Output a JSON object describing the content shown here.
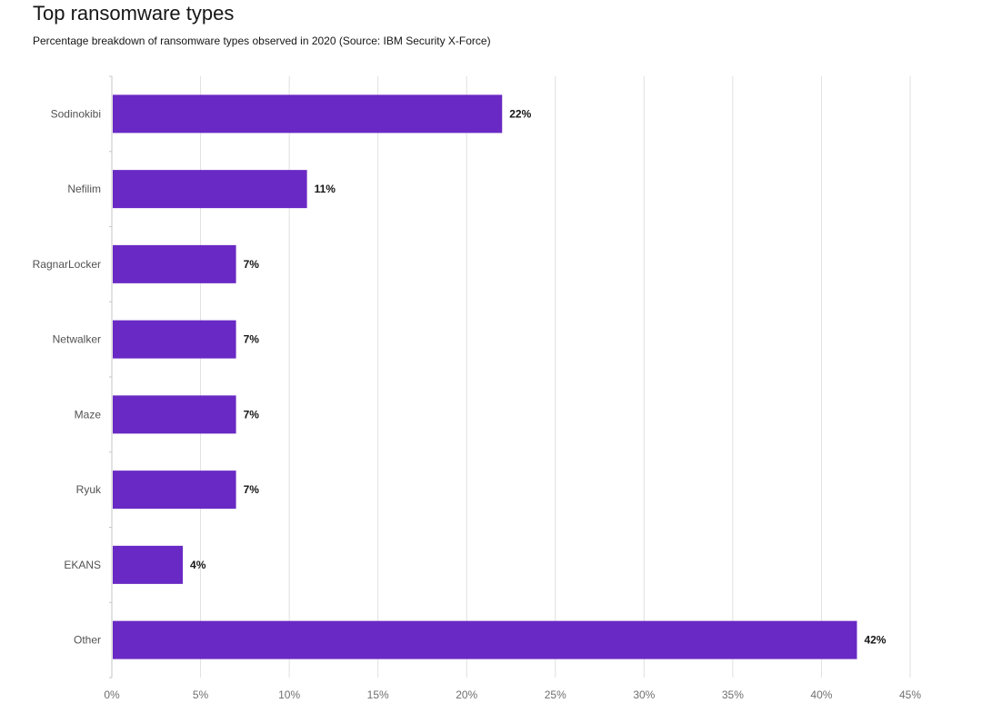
{
  "chart_data": {
    "type": "bar",
    "orientation": "horizontal",
    "title": "Top ransomware types",
    "subtitle": "Percentage breakdown of ransomware types observed in 2020 (Source: IBM Security X-Force)",
    "categories": [
      "Sodinokibi",
      "Nefilim",
      "RagnarLocker",
      "Netwalker",
      "Maze",
      "Ryuk",
      "EKANS",
      "Other"
    ],
    "values": [
      22,
      11,
      7,
      7,
      7,
      7,
      4,
      42
    ],
    "value_labels": [
      "22%",
      "11%",
      "7%",
      "7%",
      "7%",
      "7%",
      "4%",
      "42%"
    ],
    "xlim": [
      0,
      45
    ],
    "x_ticks": [
      0,
      5,
      10,
      15,
      20,
      25,
      30,
      35,
      40,
      45
    ],
    "x_tick_labels": [
      "0%",
      "5%",
      "10%",
      "15%",
      "20%",
      "25%",
      "30%",
      "35%",
      "40%",
      "45%"
    ],
    "grid": true,
    "legend": "none",
    "bar_color": "#6929c4"
  }
}
